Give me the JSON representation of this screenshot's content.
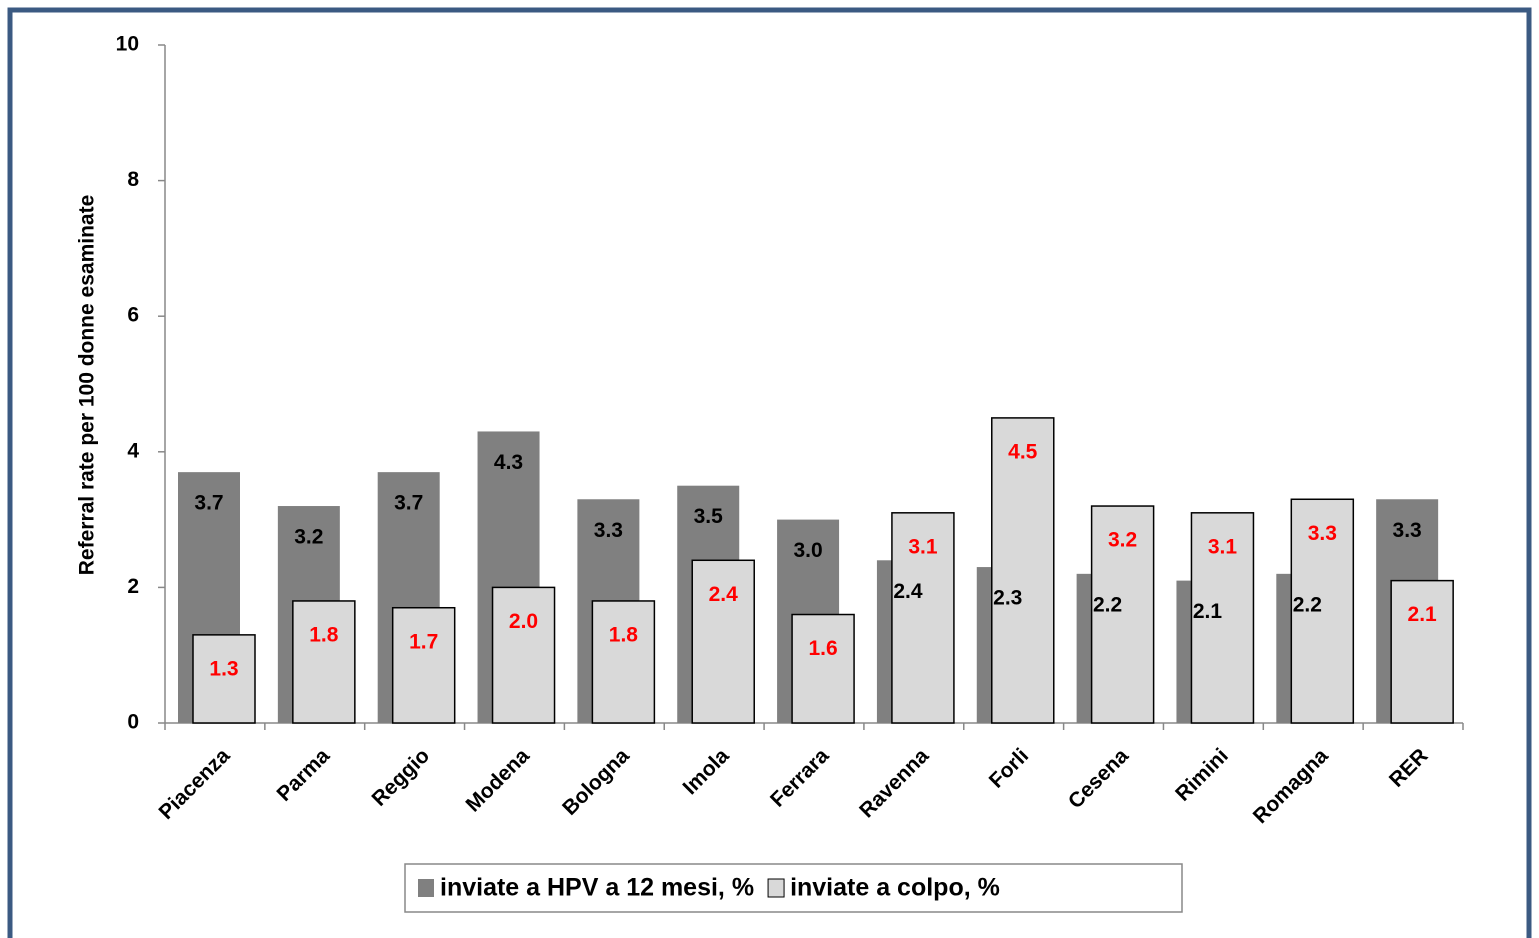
{
  "chart_data": {
    "type": "bar",
    "categories": [
      "Piacenza",
      "Parma",
      "Reggio",
      "Modena",
      "Bologna",
      "Imola",
      "Ferrara",
      "Ravenna",
      "Forli",
      "Cesena",
      "Rimini",
      "Romagna",
      "RER"
    ],
    "y_axis_label": "Referral rate per 100 donne esaminate",
    "series": [
      {
        "name": "inviate a HPV a 12 mesi, %",
        "color": "#808080",
        "label_color": "#000000",
        "values": [
          3.7,
          3.2,
          3.7,
          4.3,
          3.3,
          3.5,
          3.0,
          2.4,
          2.3,
          2.2,
          2.1,
          2.2,
          3.3
        ],
        "value_labels": [
          "3.7",
          "3.2",
          "3.7",
          "4.3",
          "3.3",
          "3.5",
          "3.0",
          "2.4",
          "2.3",
          "2.2",
          "2.1",
          "2.2",
          "3.3"
        ]
      },
      {
        "name": "inviate a colpo, %",
        "color": "#d9d9d9",
        "label_color": "#ff0000",
        "values": [
          1.3,
          1.8,
          1.7,
          2.0,
          1.8,
          2.4,
          1.6,
          3.1,
          4.5,
          3.2,
          3.1,
          3.3,
          2.1
        ],
        "value_labels": [
          "1.3",
          "1.8",
          "1.7",
          "2.0",
          "1.8",
          "2.4",
          "1.6",
          "3.1",
          "4.5",
          "3.2",
          "3.1",
          "3.3",
          "2.1"
        ]
      }
    ],
    "ylim": [
      0,
      10
    ],
    "yticks": [
      0,
      2,
      4,
      6,
      8,
      10
    ],
    "legend": "bottom"
  }
}
